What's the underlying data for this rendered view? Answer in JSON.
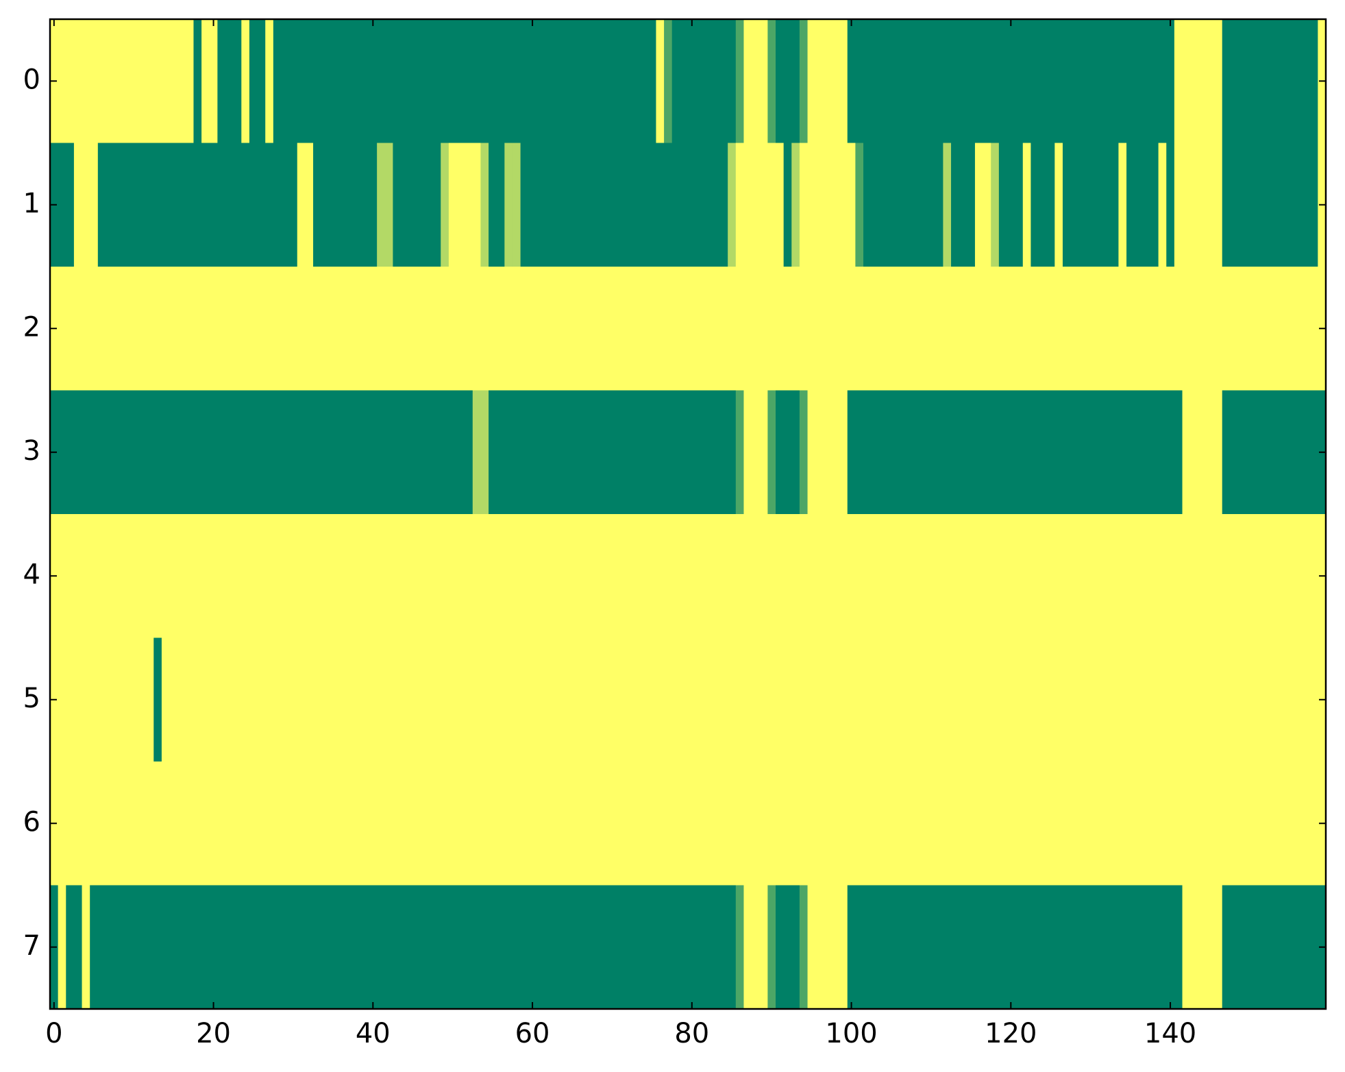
{
  "chart_data": {
    "type": "heatmap",
    "z": [
      [
        1,
        1,
        1,
        1,
        1,
        1,
        1,
        1,
        1,
        1,
        1,
        1,
        1,
        1,
        1,
        1,
        1,
        1,
        0,
        1,
        1,
        0,
        0,
        0,
        1,
        0,
        0,
        1,
        0,
        0,
        0,
        0,
        0,
        0,
        0,
        0,
        0,
        0,
        0,
        0,
        0,
        0,
        0,
        0,
        0,
        0,
        0,
        0,
        0,
        0,
        0,
        0,
        0,
        0,
        0,
        0,
        0,
        0,
        0,
        0,
        0,
        0,
        0,
        0,
        0,
        0,
        0,
        0,
        0,
        0,
        0,
        0,
        0,
        0,
        0,
        0,
        1,
        0.3,
        0,
        0,
        0,
        0,
        0,
        0,
        0,
        0,
        0.3,
        1,
        1,
        1,
        0.3,
        0,
        0,
        0,
        0.3,
        1,
        1,
        1,
        1,
        1,
        0,
        0,
        0,
        0,
        0,
        0,
        0,
        0,
        0,
        0,
        0,
        0,
        0,
        0,
        0,
        0,
        0,
        0,
        0,
        0,
        0,
        0,
        0,
        0,
        0,
        0,
        0,
        0,
        0,
        0,
        0,
        0,
        0,
        0,
        0,
        0,
        0,
        0,
        0,
        0,
        0,
        1,
        1,
        1,
        1,
        1,
        1,
        0,
        0,
        0,
        0,
        0,
        0,
        0,
        0,
        0,
        0,
        0,
        0,
        1
      ],
      [
        0,
        0,
        0,
        1,
        1,
        1,
        0,
        0,
        0,
        0,
        0,
        0,
        0,
        0,
        0,
        0,
        0,
        0,
        0,
        0,
        0,
        0,
        0,
        0,
        0,
        0,
        0,
        0,
        0,
        0,
        0,
        1,
        1,
        0,
        0,
        0,
        0,
        0,
        0,
        0,
        0,
        0.7,
        0.7,
        0,
        0,
        0,
        0,
        0,
        0,
        0.7,
        1,
        1,
        1,
        1,
        0.7,
        0,
        0,
        0.7,
        0.7,
        0,
        0,
        0,
        0,
        0,
        0,
        0,
        0,
        0,
        0,
        0,
        0,
        0,
        0,
        0,
        0,
        0,
        0,
        0,
        0,
        0,
        0,
        0,
        0,
        0,
        0,
        0.7,
        1,
        1,
        1,
        1,
        1,
        1,
        0,
        0.7,
        1,
        1,
        1,
        1,
        1,
        1,
        1,
        0.3,
        0,
        0,
        0,
        0,
        0,
        0,
        0,
        0,
        0,
        0,
        0.7,
        0,
        0,
        0,
        1,
        1,
        0.7,
        0,
        0,
        0,
        1,
        0,
        0,
        0,
        1,
        0,
        0,
        0,
        0,
        0,
        0,
        0,
        1,
        0,
        0,
        0,
        0,
        1,
        0,
        1,
        1,
        1,
        1,
        1,
        1,
        0,
        0,
        0,
        0,
        0,
        0,
        0,
        0,
        0,
        0,
        0,
        0,
        1
      ],
      [
        1,
        1,
        1,
        1,
        1,
        1,
        1,
        1,
        1,
        1,
        1,
        1,
        1,
        1,
        1,
        1,
        1,
        1,
        1,
        1,
        1,
        1,
        1,
        1,
        1,
        1,
        1,
        1,
        1,
        1,
        1,
        1,
        1,
        1,
        1,
        1,
        1,
        1,
        1,
        1,
        1,
        1,
        1,
        1,
        1,
        1,
        1,
        1,
        1,
        1,
        1,
        1,
        1,
        1,
        1,
        1,
        1,
        1,
        1,
        1,
        1,
        1,
        1,
        1,
        1,
        1,
        1,
        1,
        1,
        1,
        1,
        1,
        1,
        1,
        1,
        1,
        1,
        1,
        1,
        1,
        1,
        1,
        1,
        1,
        1,
        1,
        1,
        1,
        1,
        1,
        1,
        1,
        1,
        1,
        1,
        1,
        1,
        1,
        1,
        1,
        1,
        1,
        1,
        1,
        1,
        1,
        1,
        1,
        1,
        1,
        1,
        1,
        1,
        1,
        1,
        1,
        1,
        1,
        1,
        1,
        1,
        1,
        1,
        1,
        1,
        1,
        1,
        1,
        1,
        1,
        1,
        1,
        1,
        1,
        1,
        1,
        1,
        1,
        1,
        1,
        1,
        1,
        1,
        1,
        1,
        1,
        1,
        1,
        1,
        1,
        1,
        1,
        1,
        1,
        1,
        1,
        1,
        1,
        1,
        1
      ],
      [
        0,
        0,
        0,
        0,
        0,
        0,
        0,
        0,
        0,
        0,
        0,
        0,
        0,
        0,
        0,
        0,
        0,
        0,
        0,
        0,
        0,
        0,
        0,
        0,
        0,
        0,
        0,
        0,
        0,
        0,
        0,
        0,
        0,
        0,
        0,
        0,
        0,
        0,
        0,
        0,
        0,
        0,
        0,
        0,
        0,
        0,
        0,
        0,
        0,
        0,
        0,
        0,
        0,
        0.7,
        0.7,
        0,
        0,
        0,
        0,
        0,
        0,
        0,
        0,
        0,
        0,
        0,
        0,
        0,
        0,
        0,
        0,
        0,
        0,
        0,
        0,
        0,
        0,
        0,
        0,
        0,
        0,
        0,
        0,
        0,
        0,
        0,
        0.3,
        1,
        1,
        1,
        0.3,
        0,
        0,
        0,
        0.3,
        1,
        1,
        1,
        1,
        1,
        0,
        0,
        0,
        0,
        0,
        0,
        0,
        0,
        0,
        0,
        0,
        0,
        0,
        0,
        0,
        0,
        0,
        0,
        0,
        0,
        0,
        0,
        0,
        0,
        0,
        0,
        0,
        0,
        0,
        0,
        0,
        0,
        0,
        0,
        0,
        0,
        0,
        0,
        0,
        0,
        0,
        0,
        1,
        1,
        1,
        1,
        1,
        0,
        0,
        0,
        0,
        0,
        0,
        0,
        0,
        0,
        0,
        0,
        0,
        0
      ],
      [
        1,
        1,
        1,
        1,
        1,
        1,
        1,
        1,
        1,
        1,
        1,
        1,
        1,
        1,
        1,
        1,
        1,
        1,
        1,
        1,
        1,
        1,
        1,
        1,
        1,
        1,
        1,
        1,
        1,
        1,
        1,
        1,
        1,
        1,
        1,
        1,
        1,
        1,
        1,
        1,
        1,
        1,
        1,
        1,
        1,
        1,
        1,
        1,
        1,
        1,
        1,
        1,
        1,
        1,
        1,
        1,
        1,
        1,
        1,
        1,
        1,
        1,
        1,
        1,
        1,
        1,
        1,
        1,
        1,
        1,
        1,
        1,
        1,
        1,
        1,
        1,
        1,
        1,
        1,
        1,
        1,
        1,
        1,
        1,
        1,
        1,
        1,
        1,
        1,
        1,
        1,
        1,
        1,
        1,
        1,
        1,
        1,
        1,
        1,
        1,
        1,
        1,
        1,
        1,
        1,
        1,
        1,
        1,
        1,
        1,
        1,
        1,
        1,
        1,
        1,
        1,
        1,
        1,
        1,
        1,
        1,
        1,
        1,
        1,
        1,
        1,
        1,
        1,
        1,
        1,
        1,
        1,
        1,
        1,
        1,
        1,
        1,
        1,
        1,
        1,
        1,
        1,
        1,
        1,
        1,
        1,
        1,
        1,
        1,
        1,
        1,
        1,
        1,
        1,
        1,
        1,
        1,
        1,
        1,
        1
      ],
      [
        1,
        1,
        1,
        1,
        1,
        1,
        1,
        1,
        1,
        1,
        1,
        1,
        1,
        0,
        1,
        1,
        1,
        1,
        1,
        1,
        1,
        1,
        1,
        1,
        1,
        1,
        1,
        1,
        1,
        1,
        1,
        1,
        1,
        1,
        1,
        1,
        1,
        1,
        1,
        1,
        1,
        1,
        1,
        1,
        1,
        1,
        1,
        1,
        1,
        1,
        1,
        1,
        1,
        1,
        1,
        1,
        1,
        1,
        1,
        1,
        1,
        1,
        1,
        1,
        1,
        1,
        1,
        1,
        1,
        1,
        1,
        1,
        1,
        1,
        1,
        1,
        1,
        1,
        1,
        1,
        1,
        1,
        1,
        1,
        1,
        1,
        1,
        1,
        1,
        1,
        1,
        1,
        1,
        1,
        1,
        1,
        1,
        1,
        1,
        1,
        1,
        1,
        1,
        1,
        1,
        1,
        1,
        1,
        1,
        1,
        1,
        1,
        1,
        1,
        1,
        1,
        1,
        1,
        1,
        1,
        1,
        1,
        1,
        1,
        1,
        1,
        1,
        1,
        1,
        1,
        1,
        1,
        1,
        1,
        1,
        1,
        1,
        1,
        1,
        1,
        1,
        1,
        1,
        1,
        1,
        1,
        1,
        1,
        1,
        1,
        1,
        1,
        1,
        1,
        1,
        1,
        1,
        1,
        1,
        1
      ],
      [
        1,
        1,
        1,
        1,
        1,
        1,
        1,
        1,
        1,
        1,
        1,
        1,
        1,
        1,
        1,
        1,
        1,
        1,
        1,
        1,
        1,
        1,
        1,
        1,
        1,
        1,
        1,
        1,
        1,
        1,
        1,
        1,
        1,
        1,
        1,
        1,
        1,
        1,
        1,
        1,
        1,
        1,
        1,
        1,
        1,
        1,
        1,
        1,
        1,
        1,
        1,
        1,
        1,
        1,
        1,
        1,
        1,
        1,
        1,
        1,
        1,
        1,
        1,
        1,
        1,
        1,
        1,
        1,
        1,
        1,
        1,
        1,
        1,
        1,
        1,
        1,
        1,
        1,
        1,
        1,
        1,
        1,
        1,
        1,
        1,
        1,
        1,
        1,
        1,
        1,
        1,
        1,
        1,
        1,
        1,
        1,
        1,
        1,
        1,
        1,
        1,
        1,
        1,
        1,
        1,
        1,
        1,
        1,
        1,
        1,
        1,
        1,
        1,
        1,
        1,
        1,
        1,
        1,
        1,
        1,
        1,
        1,
        1,
        1,
        1,
        1,
        1,
        1,
        1,
        1,
        1,
        1,
        1,
        1,
        1,
        1,
        1,
        1,
        1,
        1,
        1,
        1,
        1,
        1,
        1,
        1,
        1,
        1,
        1,
        1,
        1,
        1,
        1,
        1,
        1,
        1,
        1,
        1,
        1,
        1
      ],
      [
        0,
        1,
        0,
        0,
        1,
        0,
        0,
        0,
        0,
        0,
        0,
        0,
        0,
        0,
        0,
        0,
        0,
        0,
        0,
        0,
        0,
        0,
        0,
        0,
        0,
        0,
        0,
        0,
        0,
        0,
        0,
        0,
        0,
        0,
        0,
        0,
        0,
        0,
        0,
        0,
        0,
        0,
        0,
        0,
        0,
        0,
        0,
        0,
        0,
        0,
        0,
        0,
        0,
        0,
        0,
        0,
        0,
        0,
        0,
        0,
        0,
        0,
        0,
        0,
        0,
        0,
        0,
        0,
        0,
        0,
        0,
        0,
        0,
        0,
        0,
        0,
        0,
        0,
        0,
        0,
        0,
        0,
        0,
        0,
        0,
        0,
        0.3,
        1,
        1,
        1,
        0.3,
        0,
        0,
        0,
        0.3,
        1,
        1,
        1,
        1,
        1,
        0,
        0,
        0,
        0,
        0,
        0,
        0,
        0,
        0,
        0,
        0,
        0,
        0,
        0,
        0,
        0,
        0,
        0,
        0,
        0,
        0,
        0,
        0,
        0,
        0,
        0,
        0,
        0,
        0,
        0,
        0,
        0,
        0,
        0,
        0,
        0,
        0,
        0,
        0,
        0,
        0,
        0,
        1,
        1,
        1,
        1,
        1,
        0,
        0,
        0,
        0,
        0,
        0,
        0,
        0,
        0,
        0,
        0,
        0,
        0
      ]
    ],
    "zlim": [
      0,
      1
    ],
    "colormap": [
      "#008066",
      "#ffff66"
    ],
    "xlim": [
      -0.5,
      159.5
    ],
    "ylim": [
      7.5,
      -0.5
    ],
    "xticks": [
      0,
      20,
      40,
      60,
      80,
      100,
      120,
      140
    ],
    "yticks": [
      0,
      1,
      2,
      3,
      4,
      5,
      6,
      7
    ]
  }
}
